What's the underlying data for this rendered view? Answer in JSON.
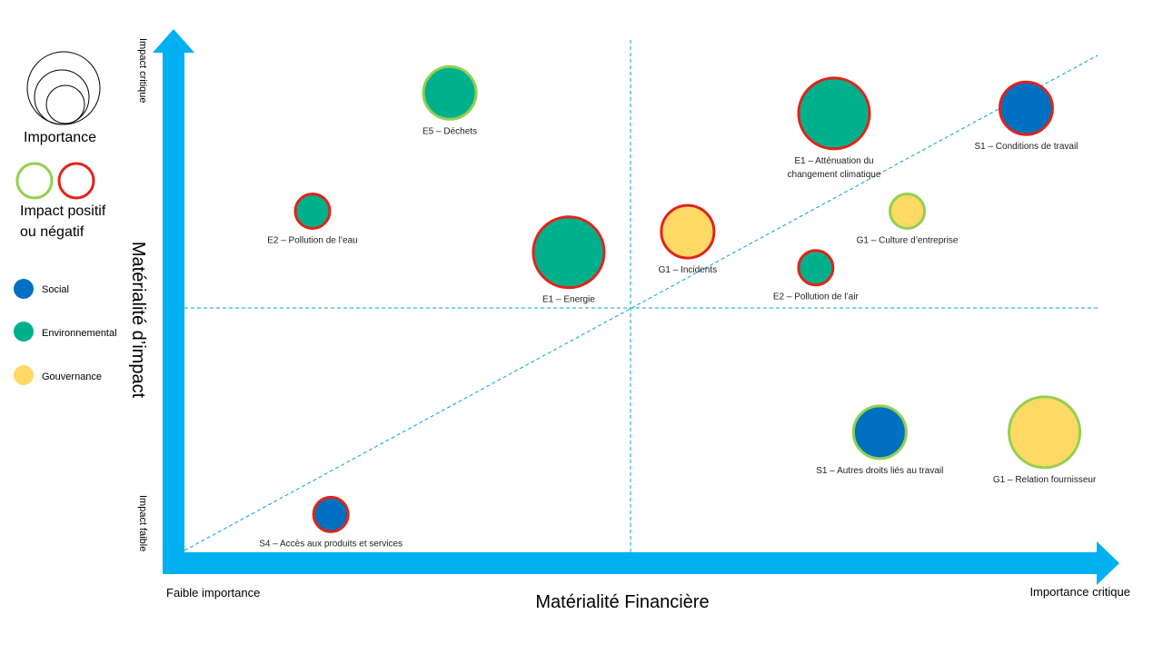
{
  "chart_data": {
    "type": "scatter",
    "xlabel": "Matérialité Financière",
    "ylabel": "Matérialité d’impact",
    "x_low_label": "Faible importance",
    "x_high_label": "Importance critique",
    "y_high_label": "Impact critique",
    "y_low_label": "Impact faible",
    "xlim": [
      0,
      100
    ],
    "ylim": [
      0,
      100
    ],
    "grid": false,
    "legend": {
      "size_title": "Importance",
      "sign_title_line1": "Impact positif",
      "sign_title_line2": "ou négatif",
      "categories": [
        {
          "key": "social",
          "label": "Social",
          "color": "#0070C0"
        },
        {
          "key": "env",
          "label": "Environnemental",
          "color": "#00B08C"
        },
        {
          "key": "gov",
          "label": "Gouvernance",
          "color": "#FFD966"
        }
      ],
      "positive_color": "#92D050",
      "negative_color": "#E2231A"
    },
    "points": [
      {
        "label": "E5 – Déchets",
        "x": 29,
        "y": 89,
        "size": 2,
        "category": "env",
        "impact": "positive",
        "label_lines": [
          "E5 – Déchets"
        ]
      },
      {
        "label": "E1 – Atténuation du changement climatique",
        "x": 71,
        "y": 85,
        "size": 3,
        "category": "env",
        "impact": "negative",
        "label_lines": [
          "E1 – Atténuation du",
          "changement climatique"
        ]
      },
      {
        "label": "S1 – Conditions de travail",
        "x": 92,
        "y": 86,
        "size": 2,
        "category": "social",
        "impact": "negative",
        "label_lines": [
          "S1 – Conditions de travail"
        ]
      },
      {
        "label": "E2 – Pollution de l’eau",
        "x": 14,
        "y": 66,
        "size": 1,
        "category": "env",
        "impact": "negative",
        "label_lines": [
          "E2 – Pollution de l’eau"
        ]
      },
      {
        "label": "E1 – Energie",
        "x": 42,
        "y": 58,
        "size": 3,
        "category": "env",
        "impact": "negative",
        "label_lines": [
          "E1 – Energie"
        ]
      },
      {
        "label": "G1 – Incidents",
        "x": 55,
        "y": 62,
        "size": 2,
        "category": "gov",
        "impact": "negative",
        "label_lines": [
          "G1 – Incidents"
        ]
      },
      {
        "label": "G1 – Culture d’entreprise",
        "x": 79,
        "y": 66,
        "size": 1,
        "category": "gov",
        "impact": "positive",
        "label_lines": [
          "G1 – Culture d’entreprise"
        ]
      },
      {
        "label": "E2 – Pollution de l’air",
        "x": 69,
        "y": 55,
        "size": 1,
        "category": "env",
        "impact": "negative",
        "label_lines": [
          "E2 – Pollution de l’air"
        ]
      },
      {
        "label": "S1 – Autres droits liés au travail",
        "x": 76,
        "y": 23,
        "size": 2,
        "category": "social",
        "impact": "positive",
        "label_lines": [
          "S1 – Autres droits liés au travail"
        ]
      },
      {
        "label": "G1 – Relation fournisseur",
        "x": 94,
        "y": 23,
        "size": 3,
        "category": "gov",
        "impact": "positive",
        "label_lines": [
          "G1 – Relation fournisseur"
        ]
      },
      {
        "label": "S4 – Accès aux produits et services",
        "x": 16,
        "y": 7,
        "size": 1,
        "category": "social",
        "impact": "negative",
        "label_lines": [
          "S4 – Accès aux produits et services"
        ]
      }
    ]
  }
}
